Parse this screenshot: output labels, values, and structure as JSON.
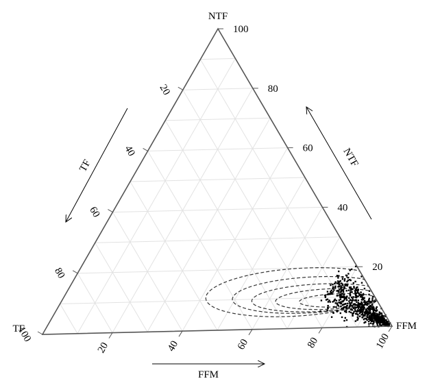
{
  "chart_data": {
    "type": "scatter",
    "subtype": "ternary",
    "vertices": {
      "top": "NTF",
      "left": "TF",
      "right": "FFM"
    },
    "axes": [
      {
        "name": "NTF",
        "title": "NTF",
        "ticks": [
          "20",
          "40",
          "60",
          "80",
          "100"
        ]
      },
      {
        "name": "TF",
        "title": "TF",
        "ticks": [
          "20",
          "40",
          "60",
          "80",
          "100"
        ]
      },
      {
        "name": "FFM",
        "title": "FFM",
        "ticks": [
          "20",
          "40",
          "60",
          "80",
          "100"
        ]
      }
    ],
    "range": [
      0,
      100
    ],
    "grid": true,
    "grid_step": 10,
    "point_cloud": {
      "color": "#000000",
      "count": 700,
      "center": {
        "NTF": 11,
        "TF": 14,
        "FFM": 75
      },
      "spread_along_FFM": [
        75,
        99
      ],
      "note_values": "estimated"
    },
    "contours": {
      "style": "dashed",
      "color": "#333333",
      "ellipses": [
        {
          "center": {
            "NTF": 12,
            "TF": 21,
            "FFM": 67
          },
          "semi_major_FFM": 26,
          "semi_minor_NTF": 8
        },
        {
          "center": {
            "NTF": 11,
            "TF": 18,
            "FFM": 71
          },
          "semi_major_FFM": 22,
          "semi_minor_NTF": 6
        },
        {
          "center": {
            "NTF": 10,
            "TF": 16,
            "FFM": 74
          },
          "semi_major_FFM": 19,
          "semi_minor_NTF": 4.6
        },
        {
          "center": {
            "NTF": 9.5,
            "TF": 13.5,
            "FFM": 77
          },
          "semi_major_FFM": 15,
          "semi_minor_NTF": 3.4
        },
        {
          "center": {
            "NTF": 9,
            "TF": 11,
            "FFM": 80
          },
          "semi_major_FFM": 11,
          "semi_minor_NTF": 2.2
        }
      ]
    }
  }
}
